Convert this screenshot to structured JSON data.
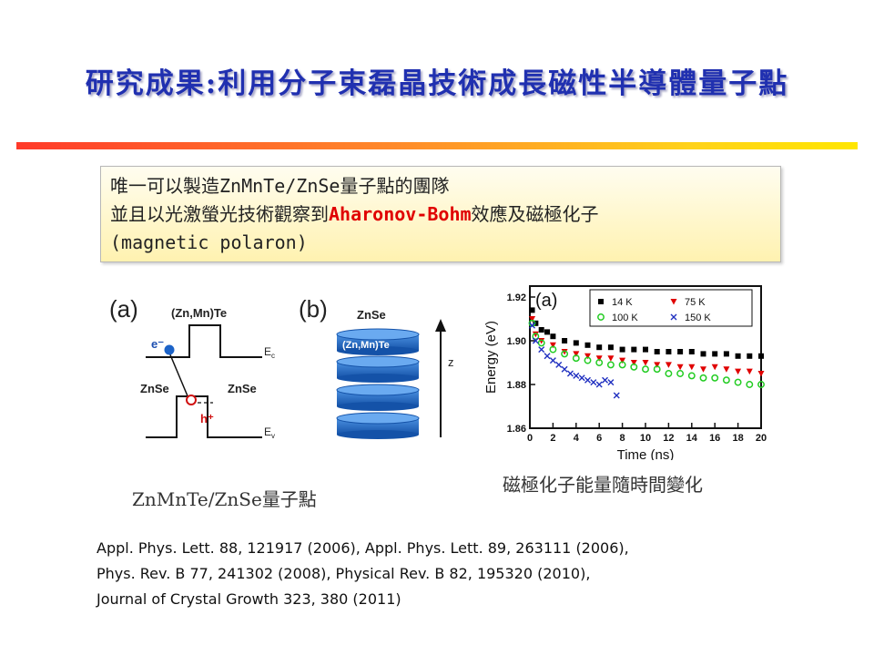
{
  "slide": {
    "title": "研究成果:利用分子束磊晶技術成長磁性半導體量子點",
    "callout": {
      "line1": "唯一可以製造ZnMnTe/ZnSe量子點的團隊",
      "line2_before": "並且以光激螢光技術觀察到",
      "line2_highlight": "Aharonov-Bohm",
      "line2_after": "效應及磁極化子",
      "line3": "(magnetic polaron)"
    },
    "figure_a": {
      "panel_label": "(a)",
      "top_label": "(Zn,Mn)Te",
      "left_label": "ZnSe",
      "right_label": "ZnSe",
      "electron": "e⁻",
      "hole": "h⁺",
      "ec_label": "E",
      "ec_sub": "c",
      "ev_label": "E",
      "ev_sub": "v"
    },
    "figure_b": {
      "panel_label": "(b)",
      "top_label": "ZnSe",
      "dot_label": "(Zn,Mn)Te",
      "axis_label": "z"
    },
    "caption_left": "ZnMnTe/ZnSe量子點",
    "caption_right": "磁極化子能量隨時間變化",
    "references": [
      "Appl. Phys. Lett. 88, 121917 (2006), Appl. Phys. Lett. 89, 263111 (2006),",
      "Phys. Rev. B 77, 241302 (2008), Physical Rev. B 82, 195320 (2010),",
      "Journal of Crystal Growth 323, 380 (2011)"
    ]
  },
  "chart_data": {
    "type": "scatter",
    "panel_label": "(a)",
    "xlabel": "Time (ns)",
    "ylabel": "Energy (eV)",
    "xlim": [
      0,
      20
    ],
    "ylim": [
      1.86,
      1.925
    ],
    "xticks": [
      0,
      2,
      4,
      6,
      8,
      10,
      12,
      14,
      16,
      18,
      20
    ],
    "yticks": [
      1.86,
      1.88,
      1.9,
      1.92
    ],
    "ytick_labels": [
      "1.86",
      "1.88",
      "1.90",
      "1.92"
    ],
    "legend_position": "top",
    "series": [
      {
        "name": "14 K",
        "marker": "square",
        "color": "#000000",
        "points": [
          [
            0.2,
            1.914
          ],
          [
            0.5,
            1.908
          ],
          [
            1,
            1.905
          ],
          [
            1.5,
            1.904
          ],
          [
            2,
            1.902
          ],
          [
            3,
            1.9
          ],
          [
            4,
            1.899
          ],
          [
            5,
            1.898
          ],
          [
            6,
            1.897
          ],
          [
            7,
            1.897
          ],
          [
            8,
            1.896
          ],
          [
            9,
            1.896
          ],
          [
            10,
            1.896
          ],
          [
            11,
            1.895
          ],
          [
            12,
            1.895
          ],
          [
            13,
            1.895
          ],
          [
            14,
            1.895
          ],
          [
            15,
            1.894
          ],
          [
            16,
            1.894
          ],
          [
            17,
            1.894
          ],
          [
            18,
            1.893
          ],
          [
            19,
            1.893
          ],
          [
            20,
            1.893
          ]
        ]
      },
      {
        "name": "75 K",
        "marker": "triangle-down",
        "color": "#e00000",
        "points": [
          [
            0.2,
            1.91
          ],
          [
            0.5,
            1.903
          ],
          [
            1,
            1.9
          ],
          [
            2,
            1.898
          ],
          [
            3,
            1.895
          ],
          [
            4,
            1.894
          ],
          [
            5,
            1.893
          ],
          [
            6,
            1.892
          ],
          [
            7,
            1.892
          ],
          [
            8,
            1.891
          ],
          [
            9,
            1.89
          ],
          [
            10,
            1.89
          ],
          [
            11,
            1.889
          ],
          [
            12,
            1.889
          ],
          [
            13,
            1.888
          ],
          [
            14,
            1.888
          ],
          [
            15,
            1.887
          ],
          [
            16,
            1.888
          ],
          [
            17,
            1.887
          ],
          [
            18,
            1.886
          ],
          [
            19,
            1.886
          ],
          [
            20,
            1.885
          ]
        ]
      },
      {
        "name": "100 K",
        "marker": "circle",
        "color": "#22cc22",
        "points": [
          [
            0.2,
            1.908
          ],
          [
            0.5,
            1.902
          ],
          [
            1,
            1.899
          ],
          [
            2,
            1.896
          ],
          [
            3,
            1.894
          ],
          [
            4,
            1.892
          ],
          [
            5,
            1.891
          ],
          [
            6,
            1.89
          ],
          [
            7,
            1.889
          ],
          [
            8,
            1.889
          ],
          [
            9,
            1.888
          ],
          [
            10,
            1.887
          ],
          [
            11,
            1.887
          ],
          [
            12,
            1.885
          ],
          [
            13,
            1.885
          ],
          [
            14,
            1.884
          ],
          [
            15,
            1.883
          ],
          [
            16,
            1.883
          ],
          [
            17,
            1.882
          ],
          [
            18,
            1.881
          ],
          [
            19,
            1.88
          ],
          [
            20,
            1.88
          ]
        ]
      },
      {
        "name": "150 K",
        "marker": "x",
        "color": "#2030c0",
        "points": [
          [
            0.2,
            1.907
          ],
          [
            0.5,
            1.9
          ],
          [
            1,
            1.896
          ],
          [
            1.5,
            1.893
          ],
          [
            2,
            1.891
          ],
          [
            2.5,
            1.889
          ],
          [
            3,
            1.887
          ],
          [
            3.5,
            1.885
          ],
          [
            4,
            1.884
          ],
          [
            4.5,
            1.883
          ],
          [
            5,
            1.882
          ],
          [
            5.5,
            1.881
          ],
          [
            6,
            1.88
          ],
          [
            6.5,
            1.882
          ],
          [
            7,
            1.881
          ],
          [
            7.5,
            1.875
          ]
        ]
      }
    ]
  }
}
